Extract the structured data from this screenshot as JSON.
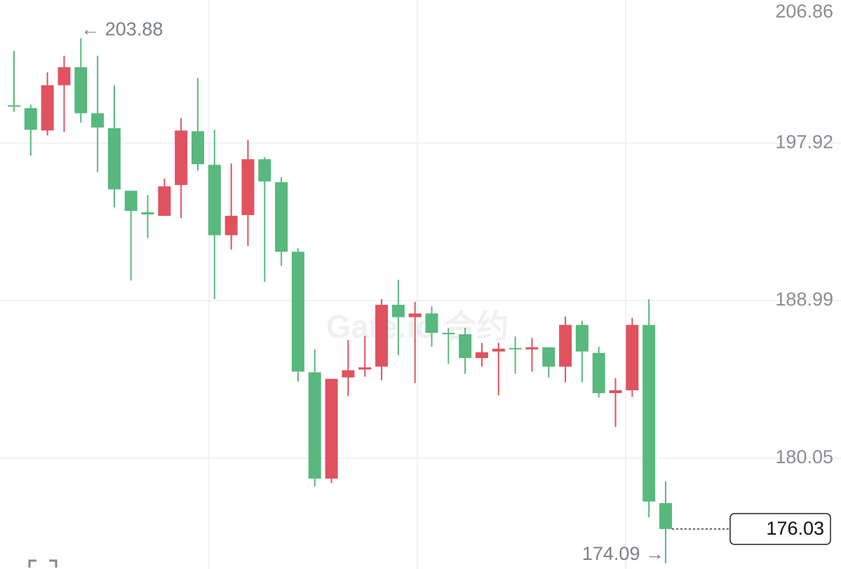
{
  "chart_data": {
    "type": "candlestick",
    "open": [
      200.07,
      199.91,
      198.64,
      201.21,
      202.23,
      199.62,
      198.77,
      195.22,
      194.0,
      193.8,
      195.55,
      198.6,
      196.69,
      192.7,
      193.84,
      197.01,
      195.71,
      191.76,
      184.92,
      178.89,
      184.63,
      185.08,
      185.24,
      188.75,
      188.05,
      188.26,
      187.16,
      187.08,
      185.73,
      186.1,
      186.3,
      186.22,
      186.34,
      185.24,
      187.61,
      186.02,
      183.74,
      183.9,
      187.61,
      177.5
    ],
    "high": [
      203.16,
      200.11,
      201.94,
      202.88,
      203.88,
      202.88,
      201.21,
      195.22,
      194.98,
      195.91,
      199.34,
      201.62,
      198.68,
      196.77,
      198.11,
      197.14,
      196.0,
      191.96,
      186.22,
      184.55,
      186.75,
      186.99,
      189.07,
      190.17,
      188.91,
      188.66,
      187.44,
      187.44,
      186.59,
      186.59,
      186.95,
      186.87,
      186.34,
      188.09,
      187.85,
      186.38,
      184.59,
      188.01,
      189.07,
      178.73
    ],
    "low": [
      199.7,
      197.22,
      198.36,
      198.56,
      199.09,
      196.28,
      194.28,
      190.13,
      192.53,
      193.8,
      193.67,
      196.36,
      189.07,
      191.88,
      192.09,
      190.05,
      190.95,
      184.39,
      178.44,
      178.64,
      183.57,
      184.67,
      184.47,
      185.89,
      184.31,
      186.38,
      185.41,
      184.84,
      185.24,
      183.61,
      184.84,
      184.96,
      184.63,
      184.35,
      184.35,
      183.49,
      181.82,
      183.53,
      176.69,
      174.09
    ],
    "close": [
      199.99,
      198.68,
      201.21,
      202.23,
      199.62,
      198.81,
      195.3,
      194.08,
      193.88,
      195.47,
      198.64,
      196.73,
      192.7,
      193.8,
      197.01,
      195.75,
      191.76,
      184.96,
      178.89,
      184.55,
      185.04,
      185.2,
      188.75,
      188.05,
      188.26,
      187.16,
      187.08,
      185.73,
      186.06,
      186.26,
      186.22,
      186.34,
      185.24,
      187.61,
      186.1,
      183.74,
      183.9,
      187.61,
      177.59,
      176.03
    ],
    "rise_color": "#e0525f",
    "fall_color": "#58b87e",
    "ylim": [
      173.76,
      206.86
    ],
    "yticks": [
      206.86,
      197.92,
      188.99,
      180.05
    ],
    "grid": true,
    "high_annotation": "← 203.88",
    "low_annotation": "174.09 →",
    "last_price": 176.03,
    "watermark": "Gate.io 合约"
  }
}
